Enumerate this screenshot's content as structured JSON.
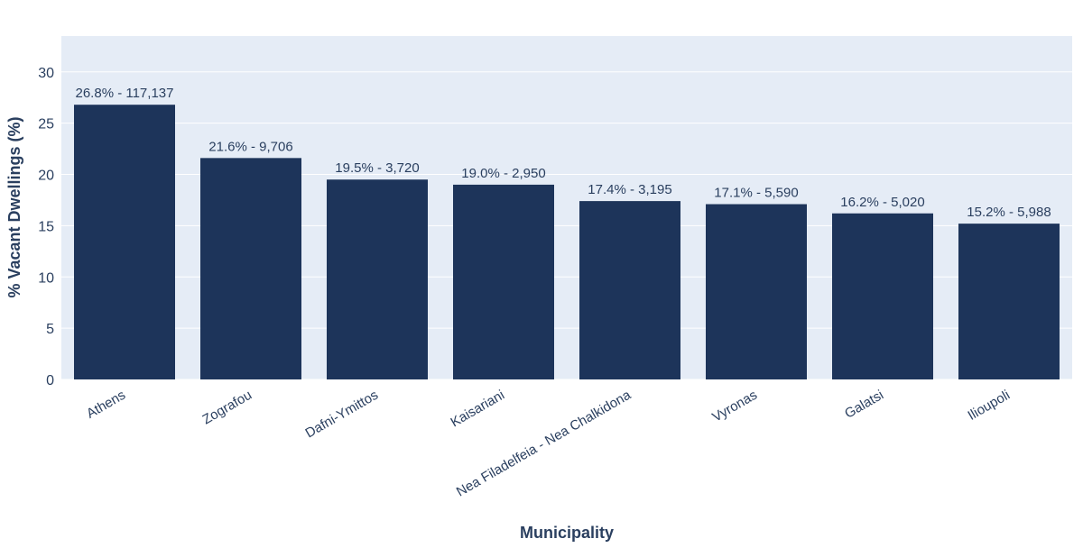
{
  "chart_data": {
    "type": "bar",
    "title": "",
    "xlabel": "Municipality",
    "ylabel": "% Vacant Dwellings (%)",
    "ylim": [
      0,
      33.5
    ],
    "yticks": [
      0,
      5,
      10,
      15,
      20,
      25,
      30
    ],
    "grid": true,
    "categories": [
      "Athens",
      "Zografou",
      "Dafni-Ymittos",
      "Kaisariani",
      "Nea Filadelfeia - Nea Chalkidona",
      "Vyronas",
      "Galatsi",
      "Ilioupoli"
    ],
    "values": [
      26.8,
      21.6,
      19.5,
      19.0,
      17.4,
      17.1,
      16.2,
      15.2
    ],
    "data_labels": [
      "26.8% - 117,137",
      "21.6% - 9,706",
      "19.5% - 3,720",
      "19.0% - 2,950",
      "17.4% - 3,195",
      "17.1% - 5,590",
      "16.2% - 5,020",
      "15.2% - 5,988"
    ],
    "colors": {
      "bar": "#1d345a",
      "plot_bg": "#e5ecf6",
      "text": "#2a3f5f",
      "grid": "#ffffff"
    }
  }
}
